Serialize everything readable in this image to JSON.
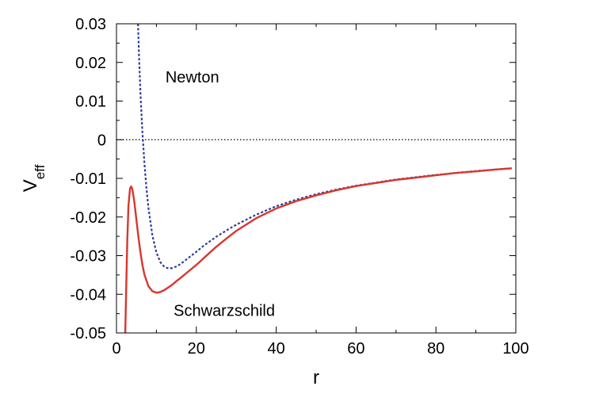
{
  "chart_data": {
    "type": "line",
    "xlabel": "r",
    "ylabel": {
      "main": "V",
      "sub": "eff"
    },
    "xlim": [
      0,
      100
    ],
    "ylim": [
      -0.05,
      0.03
    ],
    "x_ticks": [
      0,
      20,
      40,
      60,
      80,
      100
    ],
    "x_tick_labels": [
      "0",
      "20",
      "40",
      "60",
      "80",
      "100"
    ],
    "y_ticks": [
      0.03,
      0.02,
      0.01,
      0,
      -0.01,
      -0.02,
      -0.03,
      -0.04,
      -0.05
    ],
    "y_tick_labels": [
      "0.03",
      "0.02",
      "0.01",
      "0",
      "-0.01",
      "-0.02",
      "-0.03",
      "-0.04",
      "-0.05"
    ],
    "reference_line": {
      "y": 0,
      "style": "dotted",
      "color": "#000000"
    },
    "grid": false,
    "series": [
      {
        "name": "Newton",
        "color": "#2b3f9a",
        "style": "dashed",
        "x": [
          5.4,
          5.6,
          6.0,
          6.5,
          7.0,
          7.5,
          8,
          9,
          10,
          11,
          12,
          13,
          14,
          15,
          16,
          17,
          18,
          20,
          22,
          25,
          28,
          30,
          35,
          40,
          45,
          50,
          55,
          60,
          65,
          70,
          75,
          80,
          85,
          90,
          95,
          99
        ],
        "y": [
          0.03,
          0.0232,
          0.0121,
          0.0019,
          -0.0061,
          -0.0125,
          -0.0176,
          -0.0248,
          -0.0292,
          -0.0317,
          -0.0329,
          -0.0333,
          -0.0332,
          -0.0328,
          -0.0322,
          -0.0314,
          -0.0306,
          -0.029,
          -0.0273,
          -0.0251,
          -0.0232,
          -0.022,
          -0.0194,
          -0.0172,
          -0.0155,
          -0.0141,
          -0.0129,
          -0.0119,
          -0.0111,
          -0.0103,
          -0.0097,
          -0.0091,
          -0.0086,
          -0.0081,
          -0.0077,
          -0.0074
        ]
      },
      {
        "name": "Schwarzschild",
        "color": "#d8362e",
        "style": "solid",
        "x": [
          2.2,
          2.4,
          2.7,
          3.0,
          3.4,
          3.7,
          4.0,
          4.5,
          5,
          5.5,
          6,
          6.5,
          7,
          8,
          9,
          10,
          11,
          12,
          13,
          14,
          15,
          16,
          18,
          20,
          22,
          25,
          28,
          30,
          35,
          40,
          45,
          50,
          55,
          60,
          65,
          70,
          75,
          80,
          85,
          90,
          95,
          99
        ],
        "y": [
          -0.05,
          -0.0402,
          -0.0264,
          -0.0171,
          -0.0126,
          -0.0121,
          -0.0129,
          -0.0163,
          -0.0208,
          -0.0252,
          -0.0291,
          -0.0324,
          -0.0349,
          -0.0379,
          -0.0392,
          -0.0396,
          -0.0394,
          -0.0389,
          -0.0382,
          -0.0375,
          -0.0366,
          -0.0358,
          -0.0341,
          -0.0324,
          -0.0305,
          -0.0277,
          -0.0252,
          -0.0236,
          -0.0203,
          -0.0178,
          -0.0159,
          -0.0144,
          -0.0131,
          -0.012,
          -0.0112,
          -0.0104,
          -0.0098,
          -0.0092,
          -0.0086,
          -0.0082,
          -0.0077,
          -0.0074
        ]
      }
    ],
    "annotations": [
      {
        "text": "Newton",
        "x": 19,
        "y": 0.0148
      },
      {
        "text": "Schwarzschild",
        "x": 27,
        "y": -0.0456
      }
    ]
  }
}
